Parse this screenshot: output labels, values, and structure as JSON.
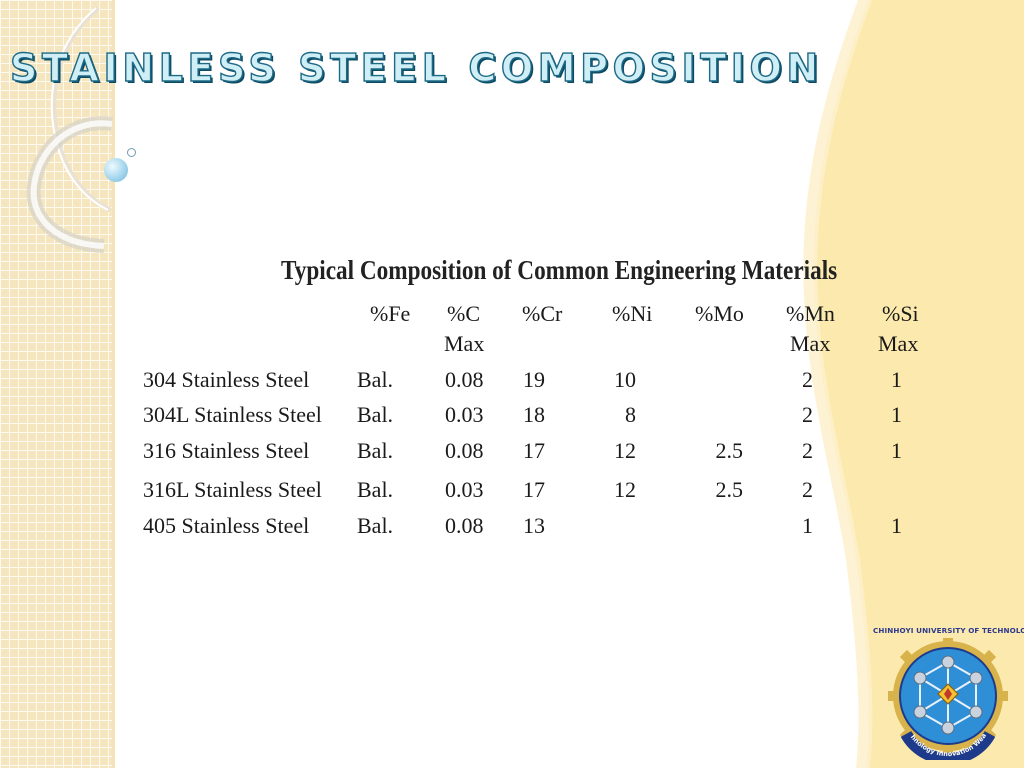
{
  "slide": {
    "title": "STAINLESS STEEL COMPOSITION"
  },
  "table": {
    "heading": "Typical Composition of Common Engineering Materials",
    "columns": [
      {
        "line1": "%Fe",
        "line2": ""
      },
      {
        "line1": "%C",
        "line2": "Max"
      },
      {
        "line1": "%Cr",
        "line2": ""
      },
      {
        "line1": "%Ni",
        "line2": ""
      },
      {
        "line1": "%Mo",
        "line2": ""
      },
      {
        "line1": "%Mn",
        "line2": "Max"
      },
      {
        "line1": "%Si",
        "line2": "Max"
      }
    ],
    "rows": [
      {
        "name": "304 Stainless Steel",
        "fe": "Bal.",
        "c": "0.08",
        "cr": "19",
        "ni": "10",
        "mo": "",
        "mn": "2",
        "si": "1"
      },
      {
        "name": "304L Stainless Steel",
        "fe": "Bal.",
        "c": "0.03",
        "cr": "18",
        "ni": "8",
        "mo": "",
        "mn": "2",
        "si": "1"
      },
      {
        "name": "316 Stainless Steel",
        "fe": "Bal.",
        "c": "0.08",
        "cr": "17",
        "ni": "12",
        "mo": "2.5",
        "mn": "2",
        "si": "1"
      },
      {
        "name": "316L Stainless Steel",
        "fe": "Bal.",
        "c": "0.03",
        "cr": "17",
        "ni": "12",
        "mo": "2.5",
        "mn": "2",
        "si": ""
      },
      {
        "name": "405 Stainless Steel",
        "fe": "Bal.",
        "c": "0.08",
        "cr": "13",
        "ni": "",
        "mo": "",
        "mn": "1",
        "si": "1"
      }
    ]
  },
  "logo": {
    "caption": "CHINHOYI UNIVERSITY OF TECHNOLOGY",
    "motto": "Technology Innovation Wealth",
    "colors": {
      "blue": "#2f8fd6",
      "gold": "#d8b24a",
      "navy": "#1e3a8a"
    }
  },
  "theme": {
    "title_fill": "#cfeef5",
    "title_stroke": "#1d6a86",
    "panel_cream": "#fce9ad",
    "grid_beige": "#f6e6bf"
  }
}
